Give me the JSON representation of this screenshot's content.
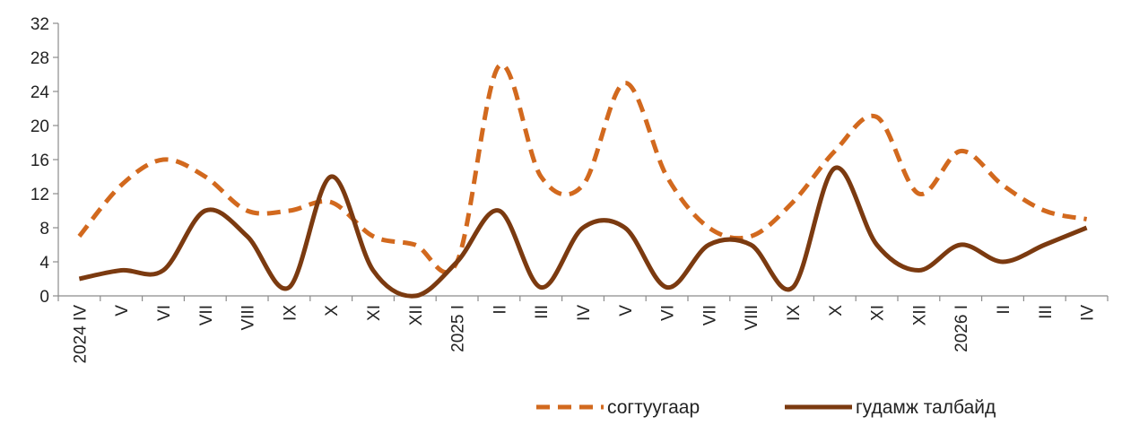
{
  "chart_data": {
    "type": "line",
    "categories": [
      "2024 IV",
      "V",
      "VI",
      "VII",
      "VIII",
      "IX",
      "X",
      "XI",
      "XII",
      "2025 I",
      "II",
      "III",
      "IV",
      "V",
      "VI",
      "VII",
      "VIII",
      "IX",
      "X",
      "XI",
      "XII",
      "2026 I",
      "II",
      "III",
      "IV"
    ],
    "series": [
      {
        "name": "согтуугаар",
        "values": [
          7,
          13,
          16,
          14,
          10,
          10,
          11,
          7,
          6,
          4,
          27,
          14,
          13,
          25,
          14,
          8,
          7,
          11,
          17,
          21,
          12,
          17,
          13,
          10,
          9
        ],
        "color": "#d2691e",
        "style": "dashed"
      },
      {
        "name": "гудамж талбайд",
        "values": [
          2,
          3,
          3,
          10,
          7,
          1,
          14,
          3,
          0,
          4,
          10,
          1,
          8,
          8,
          1,
          6,
          6,
          1,
          15,
          6,
          3,
          6,
          4,
          6,
          8
        ],
        "color": "#7b3a10",
        "style": "solid"
      }
    ],
    "yticks": [
      0,
      4,
      8,
      12,
      16,
      20,
      24,
      28,
      32
    ],
    "ylim": [
      0,
      32
    ],
    "grid": false,
    "legend": "bottom-right",
    "title": "",
    "xlabel": "",
    "ylabel": ""
  }
}
